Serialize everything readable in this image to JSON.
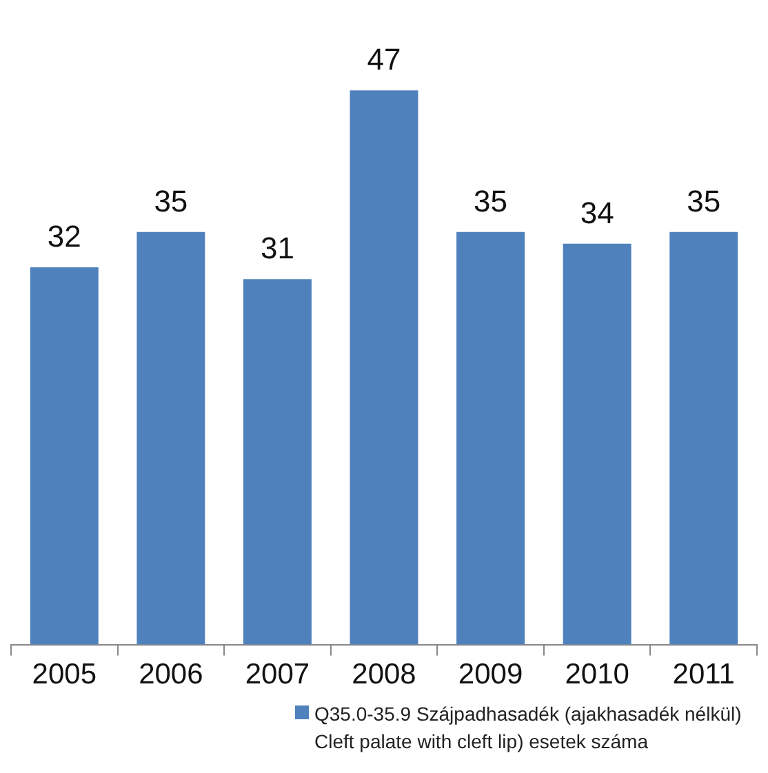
{
  "chart_data": {
    "type": "bar",
    "categories": [
      "2005",
      "2006",
      "2007",
      "2008",
      "2009",
      "2010",
      "2011"
    ],
    "series": [
      {
        "name": "Q35.0-35.9 Szájpadhasadék (ajakhasadék nélkül) Cleft palate with cleft lip) esetek száma",
        "color": "#4f81bd",
        "values": [
          32,
          35,
          31,
          47,
          35,
          34,
          35
        ]
      }
    ],
    "data_labels": true,
    "legend": "bottom"
  }
}
